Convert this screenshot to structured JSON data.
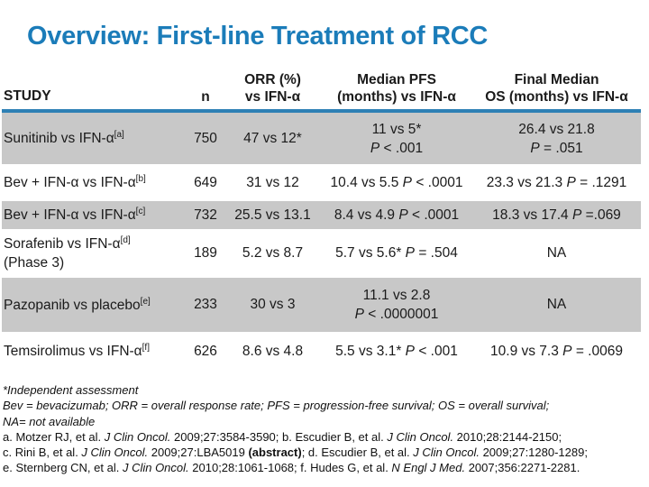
{
  "title": "Overview: First-line Treatment of RCC",
  "colors": {
    "title-blue": "#1b7cb9",
    "rule-blue": "#2e80b5",
    "row-gray": "#c8c8c8"
  },
  "table": {
    "headers": {
      "study": "STUDY",
      "n": "n",
      "orr": "ORR (%)\nvs IFN-α",
      "pfs": "Median PFS\n(months) vs IFN-α",
      "os": "Final Median\nOS (months) vs IFN-α"
    },
    "rows": [
      {
        "study": "Sunitinib vs IFN-α",
        "ref": "[a]",
        "n": "750",
        "orr": [
          {
            "t": "47 vs 12*"
          }
        ],
        "pfs1": [
          {
            "t": "11 vs 5*"
          }
        ],
        "pfs2": [
          {
            "t": "P",
            "i": true
          },
          {
            "t": " < .001"
          }
        ],
        "os1": [
          {
            "t": "26.4 vs 21.8"
          }
        ],
        "os2": [
          {
            "t": "P",
            "i": true
          },
          {
            "t": " = .051"
          }
        ]
      },
      {
        "study": "Bev + IFN-α vs IFN-α",
        "ref": "[b]",
        "n": "649",
        "orr": [
          {
            "t": "31 vs 12"
          }
        ],
        "pfs": [
          {
            "t": "10.4 vs 5.5 "
          },
          {
            "t": "P",
            "i": true
          },
          {
            "t": " < .0001"
          }
        ],
        "os": [
          {
            "t": "23.3 vs 21.3 "
          },
          {
            "t": "P",
            "i": true
          },
          {
            "t": " = .1291"
          }
        ]
      },
      {
        "study": "Bev + IFN-α vs IFN-α",
        "ref": "[c]",
        "n": "732",
        "orr": [
          {
            "t": "25.5 vs 13.1"
          }
        ],
        "pfs": [
          {
            "t": "8.4 vs 4.9 "
          },
          {
            "t": "P",
            "i": true
          },
          {
            "t": " < .0001"
          }
        ],
        "os": [
          {
            "t": "18.3 vs 17.4 "
          },
          {
            "t": "P",
            "i": true
          },
          {
            "t": " =.069"
          }
        ]
      },
      {
        "study": "Sorafenib vs IFN-α",
        "ref": "[d]",
        "study2": "(Phase 3)",
        "n": "189",
        "orr": [
          {
            "t": "5.2 vs 8.7"
          }
        ],
        "pfs": [
          {
            "t": "5.7 vs 5.6* "
          },
          {
            "t": "P",
            "i": true
          },
          {
            "t": " = .504"
          }
        ],
        "os": [
          {
            "t": "NA"
          }
        ]
      },
      {
        "study": "Pazopanib vs placebo",
        "ref": "[e]",
        "n": "233",
        "orr": [
          {
            "t": "30 vs 3"
          }
        ],
        "pfs1": [
          {
            "t": "11.1 vs 2.8"
          }
        ],
        "pfs2": [
          {
            "t": "P",
            "i": true
          },
          {
            "t": " < .0000001"
          }
        ],
        "os": [
          {
            "t": "NA"
          }
        ]
      },
      {
        "study": "Temsirolimus vs IFN-α",
        "ref": "[f]",
        "n": "626",
        "orr": [
          {
            "t": "8.6 vs 4.8"
          }
        ],
        "pfs": [
          {
            "t": "5.5 vs 3.1* "
          },
          {
            "t": "P",
            "i": true
          },
          {
            "t": " < .001"
          }
        ],
        "os": [
          {
            "t": "10.9 vs 7.3 "
          },
          {
            "t": "P",
            "i": true
          },
          {
            "t": " = .0069"
          }
        ]
      }
    ]
  },
  "footnotes": {
    "independent": "*Independent assessment",
    "abbrev": "Bev = bevacizumab; ORR = overall response rate; PFS = progression-free survival; OS = overall survival;",
    "na": "NA= not available",
    "ref_ab": [
      {
        "t": "a. Motzer RJ, et al. "
      },
      {
        "t": "J Clin Oncol.",
        "i": true
      },
      {
        "t": " 2009;27:3584-3590; b. Escudier B, et al. "
      },
      {
        "t": "J Clin Oncol.",
        "i": true
      },
      {
        "t": " 2010;28:2144-2150;"
      }
    ],
    "ref_cd": [
      {
        "t": "c. Rini B, et al. "
      },
      {
        "t": "J Clin Oncol.",
        "i": true
      },
      {
        "t": " 2009;27:LBA5019 "
      },
      {
        "t": "(abstract)",
        "b": true
      },
      {
        "t": "; d. Escudier B, et al. "
      },
      {
        "t": "J Clin Oncol.",
        "i": true
      },
      {
        "t": " 2009;27:1280-1289;"
      }
    ],
    "ref_ef": [
      {
        "t": "e. Sternberg CN, et al. "
      },
      {
        "t": "J Clin Oncol.",
        "i": true
      },
      {
        "t": " 2010;28:1061-1068; f. Hudes G, et al. "
      },
      {
        "t": "N Engl J Med.",
        "i": true
      },
      {
        "t": " 2007;356:2271-2281."
      }
    ]
  }
}
